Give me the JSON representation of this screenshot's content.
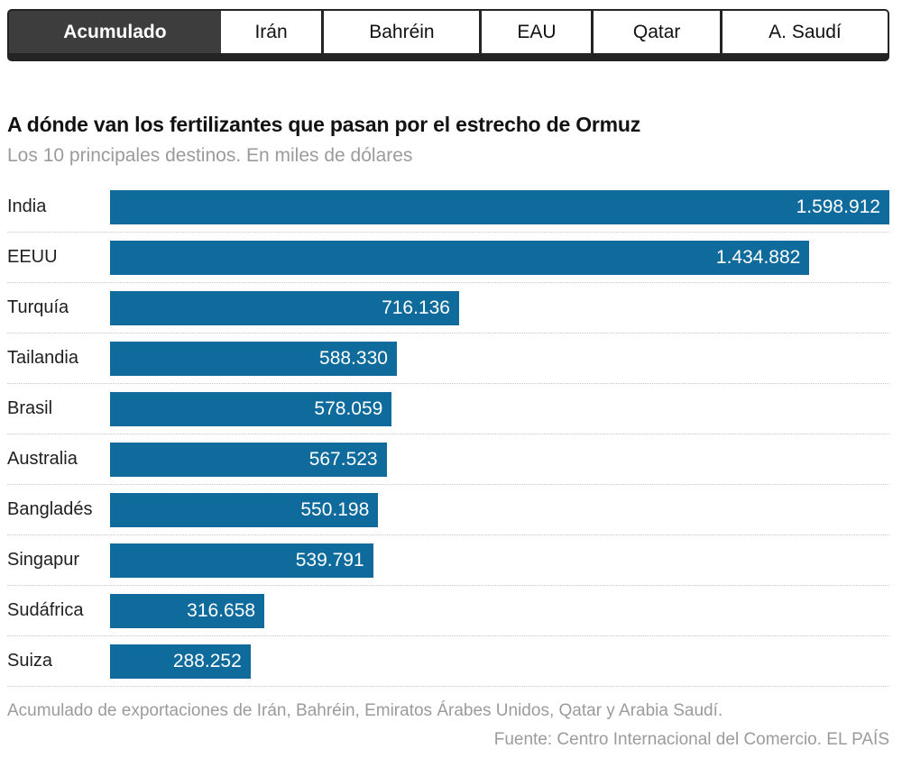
{
  "tabs": {
    "items": [
      {
        "label": "Acumulado",
        "active": true
      },
      {
        "label": "Irán",
        "active": false
      },
      {
        "label": "Bahréin",
        "active": false
      },
      {
        "label": "EAU",
        "active": false
      },
      {
        "label": "Qatar",
        "active": false
      },
      {
        "label": "A. Saudí",
        "active": false
      }
    ]
  },
  "chart_data": {
    "type": "bar",
    "orientation": "horizontal",
    "title": "A dónde van los fertilizantes que pasan por el estrecho de Ormuz",
    "subtitle": "Los 10 principales destinos. En miles de dólares",
    "categories": [
      "India",
      "EEUU",
      "Turquía",
      "Tailandia",
      "Brasil",
      "Australia",
      "Bangladés",
      "Singapur",
      "Sudáfrica",
      "Suiza"
    ],
    "values": [
      1598912,
      1434882,
      716136,
      588330,
      578059,
      567523,
      550198,
      539791,
      316658,
      288252
    ],
    "value_labels": [
      "1.598.912",
      "1.434.882",
      "716.136",
      "588.330",
      "578.059",
      "567.523",
      "550.198",
      "539.791",
      "316.658",
      "288.252"
    ],
    "xlim": [
      0,
      1598912
    ],
    "bar_color": "#0f6b9c",
    "grid": false,
    "legend": "none",
    "value_label_position": "inside-end"
  },
  "footer": {
    "note": "Acumulado de exportaciones de Irán, Bahréin, Emiratos Árabes Unidos, Qatar y Arabia Saudí.",
    "source": "Fuente: Centro Internacional del Comercio. EL PAÍS"
  }
}
